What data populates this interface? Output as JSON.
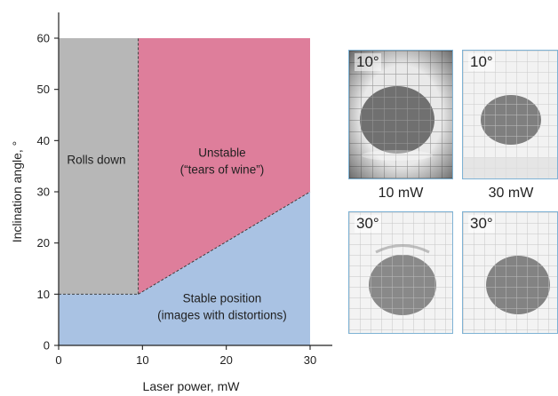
{
  "chart_data": {
    "type": "area",
    "xlabel": "Laser power, mW",
    "ylabel": "Inclination angle, °",
    "xlim": [
      0,
      35
    ],
    "ylim": [
      0,
      60
    ],
    "xticks": [
      0,
      10,
      20,
      30
    ],
    "yticks": [
      0,
      10,
      20,
      30,
      40,
      50,
      60
    ],
    "grid": false,
    "regions": [
      {
        "label": "Rolls down",
        "polygon": [
          [
            0,
            10
          ],
          [
            9.5,
            10
          ],
          [
            9.5,
            60
          ],
          [
            0,
            60
          ]
        ],
        "color": "#b7b7b7"
      },
      {
        "label": "Unstable\n(“tears of wine”)",
        "polygon": [
          [
            9.5,
            10
          ],
          [
            30,
            30
          ],
          [
            30,
            60
          ],
          [
            9.5,
            60
          ]
        ],
        "color": "#de7e9b"
      },
      {
        "label": "Stable position\n(images with distortions)",
        "polygon": [
          [
            0,
            0
          ],
          [
            30,
            0
          ],
          [
            30,
            30
          ],
          [
            9.5,
            10
          ],
          [
            0,
            10
          ]
        ],
        "color": "#a9c2e3"
      }
    ],
    "boundaries": [
      {
        "style": "dashed",
        "points": [
          [
            0,
            10
          ],
          [
            9.5,
            10
          ]
        ]
      },
      {
        "style": "dashed",
        "points": [
          [
            9.5,
            10
          ],
          [
            9.5,
            60
          ]
        ]
      },
      {
        "style": "dashed",
        "points": [
          [
            9.5,
            10
          ],
          [
            30,
            30
          ]
        ]
      }
    ]
  },
  "images": [
    {
      "angle": "10°",
      "blob": "large"
    },
    {
      "angle": "10°",
      "blob": "small"
    },
    {
      "angle": "30°",
      "blob": "medium"
    },
    {
      "angle": "30°",
      "blob": "medium"
    }
  ],
  "power_labels": [
    "10 mW",
    "30 mW"
  ]
}
